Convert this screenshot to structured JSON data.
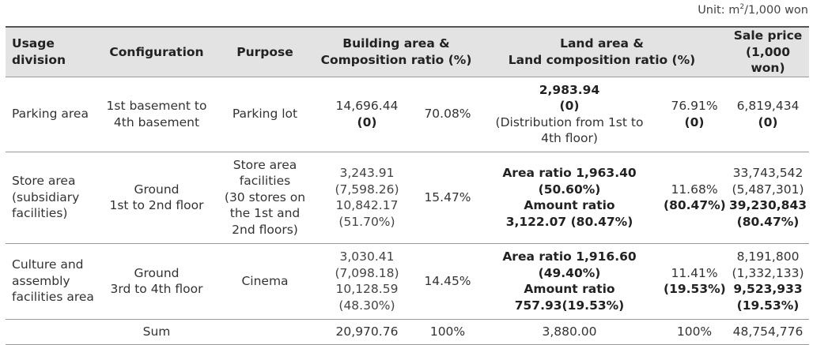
{
  "unit": {
    "prefix": "Unit: m",
    "sup": "2",
    "suffix": "/1,000 won"
  },
  "headers": {
    "usage_line1": "Usage",
    "usage_line2": "division",
    "configuration": "Configuration",
    "purpose": "Purpose",
    "building_line1": "Building area &",
    "building_line2": "Composition ratio (%)",
    "land_line1": "Land area &",
    "land_line2": "Land composition ratio (%)",
    "sale_line1": "Sale price",
    "sale_line2": "(1,000 won)"
  },
  "rows": {
    "parking": {
      "usage": "Parking area",
      "config_line1": "1st basement to",
      "config_line2": "4th basement",
      "purpose": "Parking lot",
      "building_area": "14,696.44",
      "building_paren": "(0)",
      "building_ratio": "70.08%",
      "land_area": "2,983.94",
      "land_paren": "(0)",
      "land_note_line1": "(Distribution from 1st to",
      "land_note_line2": "4th floor)",
      "land_ratio": "76.91%",
      "land_ratio_paren": "(0)",
      "sale": "6,819,434",
      "sale_paren": "(0)"
    },
    "store": {
      "usage_line1": "Store area",
      "usage_line2": "(subsidiary",
      "usage_line3": "facilities)",
      "config_line1": "Ground",
      "config_line2": "1st to 2nd floor",
      "purpose_line1": "Store area",
      "purpose_line2": "facilities",
      "purpose_line3": "(30 stores on",
      "purpose_line4": "the 1st and",
      "purpose_line5": "2nd floors)",
      "b1": "3,243.91",
      "b2": "(7,598.26)",
      "b3": "10,842.17",
      "b4": "(51.70%)",
      "building_ratio": "15.47%",
      "l1": "Area ratio 1,963.40",
      "l2": "(50.60%)",
      "l3": "Amount ratio",
      "l4": "3,122.07 (80.47%)",
      "land_ratio": "11.68%",
      "land_ratio_paren": "(80.47%)",
      "s1": "33,743,542",
      "s2": "(5,487,301)",
      "s3": "39,230,843",
      "s4": "(80.47%)"
    },
    "culture": {
      "usage_line1": "Culture and",
      "usage_line2": "assembly",
      "usage_line3": "facilities area",
      "config_line1": "Ground",
      "config_line2": "3rd to 4th floor",
      "purpose": "Cinema",
      "b1": "3,030.41",
      "b2": "(7,098.18)",
      "b3": "10,128.59",
      "b4": "(48.30%)",
      "building_ratio": "14.45%",
      "l1": "Area ratio 1,916.60",
      "l2": "(49.40%)",
      "l3": "Amount ratio",
      "l4": "757.93(19.53%)",
      "land_ratio": "11.41%",
      "land_ratio_paren": "(19.53%)",
      "s1": "8,191,800",
      "s2": "(1,332,133)",
      "s3": "9,523,933",
      "s4": "(19.53%)"
    },
    "sum": {
      "label": "Sum",
      "building_area": "20,970.76",
      "building_ratio": "100%",
      "land_area": "3,880.00",
      "land_ratio": "100%",
      "sale": "48,754,776"
    }
  }
}
